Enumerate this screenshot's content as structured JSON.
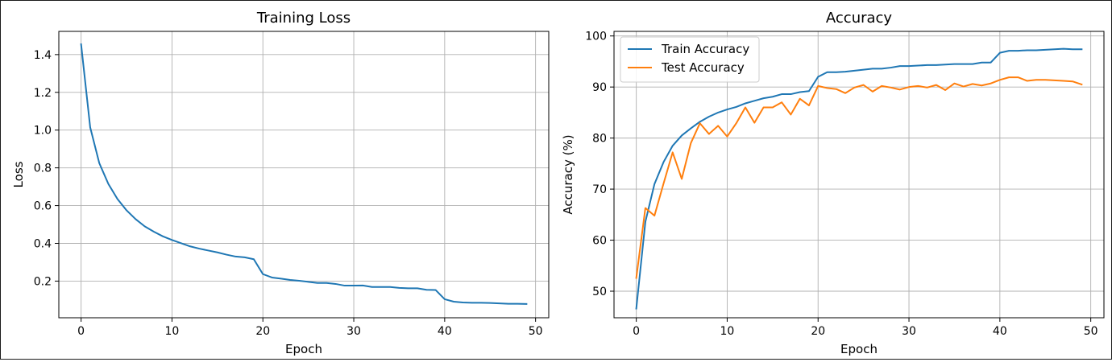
{
  "colors": {
    "train": "#1f77b4",
    "test": "#ff7f0e"
  },
  "chart_data": [
    {
      "type": "line",
      "title": "Training Loss",
      "xlabel": "Epoch",
      "ylabel": "Loss",
      "xlim": [
        -2.45,
        51.45
      ],
      "ylim": [
        0.0058,
        1.523
      ],
      "xticks": [
        0,
        10,
        20,
        30,
        40,
        50
      ],
      "yticks": [
        0.2,
        0.4,
        0.6,
        0.8,
        1.0,
        1.2,
        1.4
      ],
      "ytick_labels": [
        "0.2",
        "0.4",
        "0.6",
        "0.8",
        "1.0",
        "1.2",
        "1.4"
      ],
      "grid": true,
      "legend": "none",
      "x": [
        0,
        1,
        2,
        3,
        4,
        5,
        6,
        7,
        8,
        9,
        10,
        11,
        12,
        13,
        14,
        15,
        16,
        17,
        18,
        19,
        20,
        21,
        22,
        23,
        24,
        25,
        26,
        27,
        28,
        29,
        30,
        31,
        32,
        33,
        34,
        35,
        36,
        37,
        38,
        39,
        40,
        41,
        42,
        43,
        44,
        45,
        46,
        47,
        48,
        49
      ],
      "series": [
        {
          "color_key": "train",
          "values": [
            1.455,
            1.015,
            0.825,
            0.715,
            0.635,
            0.575,
            0.528,
            0.49,
            0.462,
            0.437,
            0.418,
            0.401,
            0.384,
            0.372,
            0.362,
            0.352,
            0.34,
            0.33,
            0.326,
            0.316,
            0.237,
            0.219,
            0.213,
            0.206,
            0.202,
            0.196,
            0.19,
            0.19,
            0.185,
            0.176,
            0.176,
            0.177,
            0.169,
            0.169,
            0.169,
            0.164,
            0.162,
            0.162,
            0.154,
            0.153,
            0.104,
            0.091,
            0.087,
            0.085,
            0.085,
            0.084,
            0.082,
            0.08,
            0.08,
            0.079
          ]
        }
      ]
    },
    {
      "type": "line",
      "title": "Accuracy",
      "xlabel": "Epoch",
      "ylabel": "Accuracy (%)",
      "xlim": [
        -2.45,
        51.45
      ],
      "ylim": [
        44.8,
        100.9
      ],
      "xticks": [
        0,
        10,
        20,
        30,
        40,
        50
      ],
      "yticks": [
        50,
        60,
        70,
        80,
        90,
        100
      ],
      "ytick_labels": [
        "50",
        "60",
        "70",
        "80",
        "90",
        "100"
      ],
      "grid": true,
      "legend": "upper-left",
      "x": [
        0,
        1,
        2,
        3,
        4,
        5,
        6,
        7,
        8,
        9,
        10,
        11,
        12,
        13,
        14,
        15,
        16,
        17,
        18,
        19,
        20,
        21,
        22,
        23,
        24,
        25,
        26,
        27,
        28,
        29,
        30,
        31,
        32,
        33,
        34,
        35,
        36,
        37,
        38,
        39,
        40,
        41,
        42,
        43,
        44,
        45,
        46,
        47,
        48,
        49
      ],
      "series": [
        {
          "name": "Train Accuracy",
          "color_key": "train",
          "values": [
            46.6,
            63.6,
            71.0,
            75.3,
            78.5,
            80.5,
            81.9,
            83.2,
            84.2,
            85.0,
            85.6,
            86.1,
            86.8,
            87.3,
            87.8,
            88.1,
            88.6,
            88.6,
            89.0,
            89.2,
            92.0,
            92.9,
            92.9,
            93.0,
            93.2,
            93.4,
            93.6,
            93.6,
            93.8,
            94.1,
            94.1,
            94.2,
            94.3,
            94.3,
            94.4,
            94.5,
            94.5,
            94.5,
            94.8,
            94.8,
            96.7,
            97.1,
            97.1,
            97.2,
            97.2,
            97.3,
            97.4,
            97.5,
            97.4,
            97.4
          ]
        },
        {
          "name": "Test Accuracy",
          "color_key": "test",
          "values": [
            52.6,
            66.3,
            64.8,
            71.1,
            77.2,
            72.0,
            79.0,
            82.9,
            80.8,
            82.4,
            80.3,
            82.9,
            86.0,
            83.0,
            86.0,
            86.0,
            87.0,
            84.6,
            87.7,
            86.4,
            90.2,
            89.8,
            89.6,
            88.8,
            89.9,
            90.4,
            89.1,
            90.2,
            89.9,
            89.5,
            90.0,
            90.2,
            89.9,
            90.4,
            89.4,
            90.7,
            90.1,
            90.6,
            90.3,
            90.7,
            91.4,
            91.9,
            91.9,
            91.2,
            91.4,
            91.4,
            91.3,
            91.2,
            91.1,
            90.5
          ]
        }
      ]
    }
  ]
}
